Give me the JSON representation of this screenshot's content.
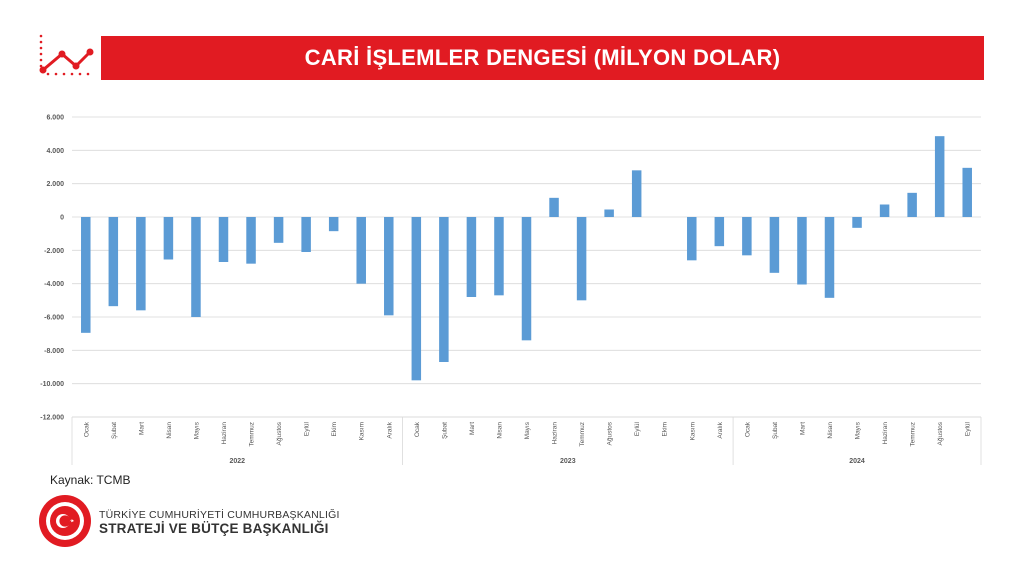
{
  "header": {
    "title": "CARİ İŞLEMLER DENGESİ (MİLYON DOLAR)",
    "accent_color": "#e11b22",
    "logo_icon": "trend-line-icon"
  },
  "chart_data": {
    "type": "bar",
    "title": "",
    "xlabel": "",
    "ylabel": "",
    "ylim": [
      -12000,
      6000
    ],
    "yticks": [
      6000,
      4000,
      2000,
      0,
      -2000,
      -4000,
      -6000,
      -8000,
      -10000,
      -12000
    ],
    "ytick_labels": [
      "6.000",
      "4.000",
      "2.000",
      "0",
      "-2.000",
      "-4.000",
      "-6.000",
      "-8.000",
      "-10.000",
      "-12.000"
    ],
    "grid": true,
    "legend": "none",
    "bar_color": "#5b9bd5",
    "groups": [
      {
        "label": "2022",
        "start": 0,
        "count": 12
      },
      {
        "label": "2023",
        "start": 12,
        "count": 12
      },
      {
        "label": "2024",
        "start": 24,
        "count": 9
      }
    ],
    "categories": [
      "Ocak",
      "Şubat",
      "Mart",
      "Nisan",
      "Mayıs",
      "Haziran",
      "Temmuz",
      "Ağustos",
      "Eylül",
      "Ekim",
      "Kasım",
      "Aralık",
      "Ocak",
      "Şubat",
      "Mart",
      "Nisan",
      "Mayıs",
      "Haziran",
      "Temmuz",
      "Ağustos",
      "Eylül",
      "Ekim",
      "Kasım",
      "Aralık",
      "Ocak",
      "Şubat",
      "Mart",
      "Nisan",
      "Mayıs",
      "Haziran",
      "Temmuz",
      "Ağustos",
      "Eylül"
    ],
    "values": [
      -6950,
      -5350,
      -5600,
      -2550,
      -6000,
      -2700,
      -2800,
      -1550,
      -2100,
      -850,
      -4000,
      -5900,
      -9800,
      -8700,
      -4800,
      -4700,
      -7400,
      1150,
      -5000,
      450,
      2800,
      0,
      -2600,
      -1750,
      -2300,
      -3350,
      -4050,
      -4850,
      -650,
      750,
      1450,
      4850,
      2950
    ]
  },
  "footer": {
    "source": "Kaynak: TCMB",
    "org_line1": "TÜRKİYE CUMHURİYETİ CUMHURBAŞKANLIĞI",
    "org_line2": "STRATEJİ VE BÜTÇE BAŞKANLIĞI",
    "seal_icon": "presidency-seal-icon",
    "seal_color": "#e11b22"
  }
}
